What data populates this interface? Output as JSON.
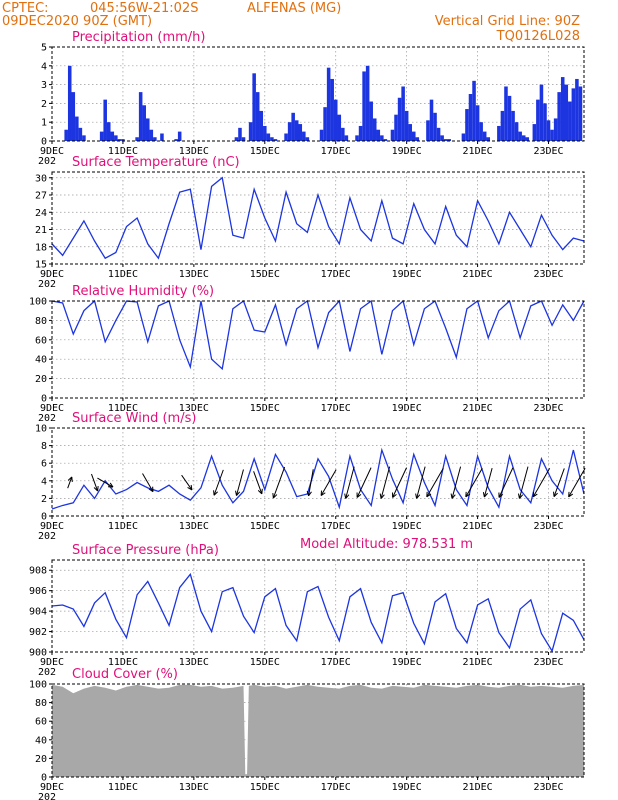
{
  "header": {
    "source": "CPTEC:",
    "coords": "045:56W-21:02S",
    "station": "ALFENAS (MG)",
    "date": "09DEC2020 90Z (GMT)",
    "grid_note": "Vertical Grid Line: 90Z",
    "code": "TQ0126L028"
  },
  "x_axis": {
    "labels": [
      "9DEC",
      "11DEC",
      "13DEC",
      "15DEC",
      "17DEC",
      "19DEC",
      "21DEC",
      "23DEC"
    ],
    "year_fragment": "202"
  },
  "colors": {
    "line": "#1d35e0",
    "bars": "#1d35e0",
    "cloud": "#a8a8a8",
    "title": "#e0107a",
    "header": "#e07010"
  },
  "chart_data": [
    {
      "type": "bar",
      "title": "Precipitation (mm/h)",
      "ylim": [
        0,
        5
      ],
      "yticks": [
        0,
        1,
        2,
        3,
        4,
        5
      ],
      "x_start_day": 9,
      "x_end_day": 24,
      "x": [
        9.4,
        9.5,
        9.6,
        9.7,
        9.8,
        9.9,
        10.4,
        10.5,
        10.6,
        10.7,
        10.8,
        10.9,
        11.0,
        11.4,
        11.5,
        11.6,
        11.7,
        11.8,
        11.9,
        12.1,
        12.5,
        12.6,
        14.2,
        14.3,
        14.4,
        14.6,
        14.7,
        14.8,
        14.9,
        15.0,
        15.1,
        15.2,
        15.3,
        15.6,
        15.7,
        15.8,
        15.9,
        16.0,
        16.1,
        16.2,
        16.6,
        16.7,
        16.8,
        16.9,
        17.0,
        17.1,
        17.2,
        17.3,
        17.6,
        17.7,
        17.8,
        17.9,
        18.0,
        18.1,
        18.2,
        18.3,
        18.4,
        18.6,
        18.7,
        18.8,
        18.9,
        19.0,
        19.1,
        19.2,
        19.3,
        19.6,
        19.7,
        19.8,
        19.9,
        20.0,
        20.1,
        20.2,
        20.3,
        20.6,
        20.7,
        20.8,
        20.9,
        21.0,
        21.1,
        21.2,
        21.3,
        21.6,
        21.7,
        21.8,
        21.9,
        22.0,
        22.1,
        22.2,
        22.3,
        22.4,
        22.6,
        22.7,
        22.8,
        22.9,
        23.0,
        23.1,
        23.2,
        23.3,
        23.4,
        23.5,
        23.6,
        23.7,
        23.8,
        23.9
      ],
      "values": [
        0.6,
        4.0,
        2.6,
        1.3,
        0.7,
        0.3,
        0.5,
        2.2,
        1.0,
        0.5,
        0.3,
        0.1,
        0.1,
        0.2,
        2.6,
        1.9,
        1.2,
        0.6,
        0.2,
        0.4,
        0.1,
        0.5,
        0.2,
        0.7,
        0.2,
        1.0,
        3.6,
        2.6,
        1.6,
        0.8,
        0.4,
        0.2,
        0.1,
        0.4,
        1.0,
        1.5,
        1.1,
        0.9,
        0.5,
        0.2,
        0.6,
        1.8,
        3.9,
        3.3,
        2.2,
        1.4,
        0.7,
        0.3,
        0.3,
        0.8,
        3.7,
        4.0,
        2.1,
        1.2,
        0.6,
        0.3,
        0.1,
        0.6,
        1.4,
        2.3,
        2.9,
        1.6,
        0.9,
        0.5,
        0.2,
        1.1,
        2.2,
        1.5,
        0.7,
        0.3,
        0.1,
        0.1,
        0.0,
        0.4,
        1.7,
        2.5,
        3.2,
        1.9,
        1.0,
        0.5,
        0.2,
        0.8,
        1.6,
        2.9,
        2.4,
        1.6,
        1.0,
        0.5,
        0.3,
        0.2,
        0.9,
        2.2,
        3.0,
        2.0,
        1.1,
        0.6,
        1.2,
        2.6,
        3.4,
        3.0,
        2.1,
        2.8,
        3.3,
        2.9
      ]
    },
    {
      "type": "line",
      "title": "Surface Temperature (nC)",
      "ylim": [
        15,
        31
      ],
      "yticks": [
        15,
        18,
        21,
        24,
        27,
        30
      ],
      "x_start_day": 9,
      "x_end_day": 24,
      "x": [
        9.0,
        9.3,
        9.6,
        9.9,
        10.2,
        10.5,
        10.8,
        11.1,
        11.4,
        11.7,
        12.0,
        12.3,
        12.6,
        12.9,
        13.2,
        13.5,
        13.8,
        14.1,
        14.4,
        14.7,
        15.0,
        15.3,
        15.6,
        15.9,
        16.2,
        16.5,
        16.8,
        17.1,
        17.4,
        17.7,
        18.0,
        18.3,
        18.6,
        18.9,
        19.2,
        19.5,
        19.8,
        20.1,
        20.4,
        20.7,
        21.0,
        21.3,
        21.6,
        21.9,
        22.2,
        22.5,
        22.8,
        23.1,
        23.4,
        23.7,
        24.0
      ],
      "values": [
        18.5,
        16.5,
        19.5,
        22.5,
        19.0,
        16.0,
        17.0,
        21.5,
        23.0,
        18.5,
        16.0,
        22.0,
        27.5,
        28.0,
        17.5,
        28.5,
        30.0,
        20.0,
        19.5,
        28.0,
        23.0,
        19.0,
        27.5,
        22.0,
        20.5,
        27.0,
        21.5,
        18.5,
        26.5,
        21.0,
        19.0,
        26.0,
        19.5,
        18.5,
        25.5,
        21.0,
        18.5,
        25.0,
        20.0,
        18.0,
        26.0,
        22.5,
        18.5,
        24.0,
        21.0,
        18.0,
        23.5,
        20.0,
        17.5,
        19.5,
        19.0
      ]
    },
    {
      "type": "line",
      "title": "Relative Humidity (%)",
      "ylim": [
        0,
        100
      ],
      "yticks": [
        0,
        20,
        40,
        60,
        80,
        100
      ],
      "x_start_day": 9,
      "x_end_day": 24,
      "x": [
        9.0,
        9.3,
        9.6,
        9.9,
        10.2,
        10.5,
        10.8,
        11.1,
        11.4,
        11.7,
        12.0,
        12.3,
        12.6,
        12.9,
        13.2,
        13.5,
        13.8,
        14.1,
        14.4,
        14.7,
        15.0,
        15.3,
        15.6,
        15.9,
        16.2,
        16.5,
        16.8,
        17.1,
        17.4,
        17.7,
        18.0,
        18.3,
        18.6,
        18.9,
        19.2,
        19.5,
        19.8,
        20.1,
        20.4,
        20.7,
        21.0,
        21.3,
        21.6,
        21.9,
        22.2,
        22.5,
        22.8,
        23.1,
        23.4,
        23.7,
        24.0
      ],
      "values": [
        100,
        98,
        66,
        90,
        100,
        58,
        80,
        100,
        99,
        58,
        95,
        100,
        60,
        32,
        100,
        40,
        30,
        92,
        100,
        70,
        68,
        96,
        55,
        92,
        100,
        52,
        88,
        100,
        48,
        92,
        100,
        45,
        90,
        100,
        55,
        92,
        100,
        72,
        42,
        92,
        100,
        62,
        90,
        100,
        62,
        95,
        100,
        75,
        96,
        80,
        100
      ]
    },
    {
      "type": "line",
      "title": "Surface Wind (m/s)",
      "ylim": [
        0,
        10
      ],
      "yticks": [
        0,
        2,
        4,
        6,
        8,
        10
      ],
      "x_start_day": 9,
      "x_end_day": 24,
      "x": [
        9.0,
        9.3,
        9.6,
        9.9,
        10.2,
        10.5,
        10.8,
        11.1,
        11.4,
        11.7,
        12.0,
        12.3,
        12.6,
        12.9,
        13.2,
        13.5,
        13.8,
        14.1,
        14.4,
        14.7,
        15.0,
        15.3,
        15.6,
        15.9,
        16.2,
        16.5,
        16.8,
        17.1,
        17.4,
        17.7,
        18.0,
        18.3,
        18.6,
        18.9,
        19.2,
        19.5,
        19.8,
        20.1,
        20.4,
        20.7,
        21.0,
        21.3,
        21.6,
        21.9,
        22.2,
        22.5,
        22.8,
        23.1,
        23.4,
        23.7,
        24.0
      ],
      "values": [
        0.8,
        1.2,
        1.5,
        3.5,
        2.0,
        4.0,
        2.5,
        3.0,
        3.8,
        3.2,
        2.8,
        3.5,
        2.5,
        1.8,
        3.2,
        6.8,
        3.5,
        1.5,
        2.8,
        6.5,
        3.0,
        7.0,
        5.0,
        2.2,
        2.5,
        6.5,
        4.5,
        1.0,
        6.8,
        3.0,
        1.2,
        7.5,
        4.2,
        1.5,
        7.0,
        3.8,
        1.2,
        6.8,
        3.0,
        1.2,
        6.8,
        3.2,
        1.0,
        6.8,
        3.0,
        1.5,
        6.5,
        4.0,
        2.5,
        7.5,
        2.5
      ],
      "arrow_x": [
        9.5,
        10.2,
        10.5,
        11.7,
        12.8,
        13.7,
        14.3,
        14.8,
        15.4,
        16.3,
        16.8,
        17.4,
        17.8,
        18.4,
        18.8,
        19.4,
        19.8,
        20.4,
        20.9,
        21.3,
        21.8,
        22.3,
        22.8,
        23.3,
        23.8
      ],
      "arrow_dir_deg": [
        20,
        160,
        120,
        150,
        145,
        200,
        195,
        160,
        200,
        190,
        210,
        195,
        205,
        195,
        205,
        195,
        210,
        195,
        210,
        195,
        205,
        195,
        210,
        200,
        210
      ],
      "arrow_speed": [
        2.0,
        3.0,
        3.0,
        3.5,
        3.0,
        4.5,
        4.5,
        4.0,
        5.5,
        4.5,
        5.0,
        5.5,
        5.5,
        5.5,
        5.5,
        5.5,
        5.5,
        5.5,
        5.5,
        5.0,
        5.5,
        5.5,
        5.5,
        5.0,
        5.5
      ]
    },
    {
      "type": "line",
      "title": "Surface Pressure (hPa)",
      "annotation": "Model Altitude: 978.531 m",
      "ylim": [
        900,
        909
      ],
      "yticks": [
        900,
        902,
        904,
        906,
        908
      ],
      "x_start_day": 9,
      "x_end_day": 24,
      "x": [
        9.0,
        9.3,
        9.6,
        9.9,
        10.2,
        10.5,
        10.8,
        11.1,
        11.4,
        11.7,
        12.0,
        12.3,
        12.6,
        12.9,
        13.2,
        13.5,
        13.8,
        14.1,
        14.4,
        14.7,
        15.0,
        15.3,
        15.6,
        15.9,
        16.2,
        16.5,
        16.8,
        17.1,
        17.4,
        17.7,
        18.0,
        18.3,
        18.6,
        18.9,
        19.2,
        19.5,
        19.8,
        20.1,
        20.4,
        20.7,
        21.0,
        21.3,
        21.6,
        21.9,
        22.2,
        22.5,
        22.8,
        23.1,
        23.4,
        23.7,
        24.0
      ],
      "values": [
        904.5,
        904.6,
        904.2,
        902.5,
        904.8,
        905.8,
        903.2,
        901.4,
        905.6,
        906.9,
        904.8,
        902.6,
        906.3,
        907.6,
        904.0,
        902.0,
        905.9,
        906.3,
        903.5,
        901.9,
        905.4,
        906.2,
        902.6,
        901.1,
        905.9,
        906.4,
        903.4,
        901.1,
        905.4,
        906.2,
        902.9,
        900.9,
        905.5,
        905.8,
        902.8,
        900.8,
        904.9,
        905.7,
        902.3,
        900.9,
        904.6,
        905.2,
        901.9,
        900.4,
        904.2,
        905.1,
        901.8,
        900.1,
        903.8,
        903.1,
        901.2
      ]
    },
    {
      "type": "area",
      "title": "Cloud Cover (%)",
      "ylim": [
        0,
        100
      ],
      "yticks": [
        0,
        20,
        40,
        60,
        80,
        100
      ],
      "x_start_day": 9,
      "x_end_day": 24,
      "x": [
        9.0,
        9.3,
        9.6,
        9.9,
        10.2,
        10.5,
        10.8,
        11.1,
        11.4,
        11.7,
        12.0,
        12.3,
        12.6,
        12.9,
        13.2,
        13.5,
        13.8,
        14.1,
        14.4,
        14.45,
        14.5,
        14.55,
        14.7,
        15.0,
        15.3,
        15.6,
        15.9,
        16.2,
        16.5,
        16.8,
        17.1,
        17.4,
        17.7,
        18.0,
        18.3,
        18.6,
        18.9,
        19.2,
        19.5,
        19.8,
        20.1,
        20.4,
        20.7,
        21.0,
        21.3,
        21.6,
        21.9,
        22.2,
        22.5,
        22.8,
        23.1,
        23.4,
        23.7,
        24.0
      ],
      "values": [
        99,
        97,
        90,
        95,
        98,
        96,
        93,
        97,
        99,
        97,
        95,
        96,
        99,
        99,
        97,
        98,
        95,
        96,
        98,
        3,
        3,
        98,
        99,
        97,
        98,
        95,
        97,
        99,
        97,
        96,
        95,
        98,
        99,
        96,
        95,
        98,
        97,
        96,
        99,
        98,
        97,
        96,
        98,
        99,
        97,
        96,
        98,
        99,
        97,
        98,
        97,
        96,
        98,
        99
      ]
    }
  ]
}
